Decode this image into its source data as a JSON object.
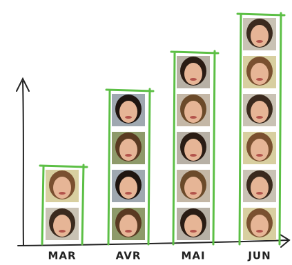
{
  "chart_data": {
    "type": "pictogram",
    "categories": [
      "MAR",
      "AVR",
      "MAI",
      "JUN"
    ],
    "values": [
      2,
      4,
      5,
      6
    ],
    "color": "#5cbf45"
  }
}
